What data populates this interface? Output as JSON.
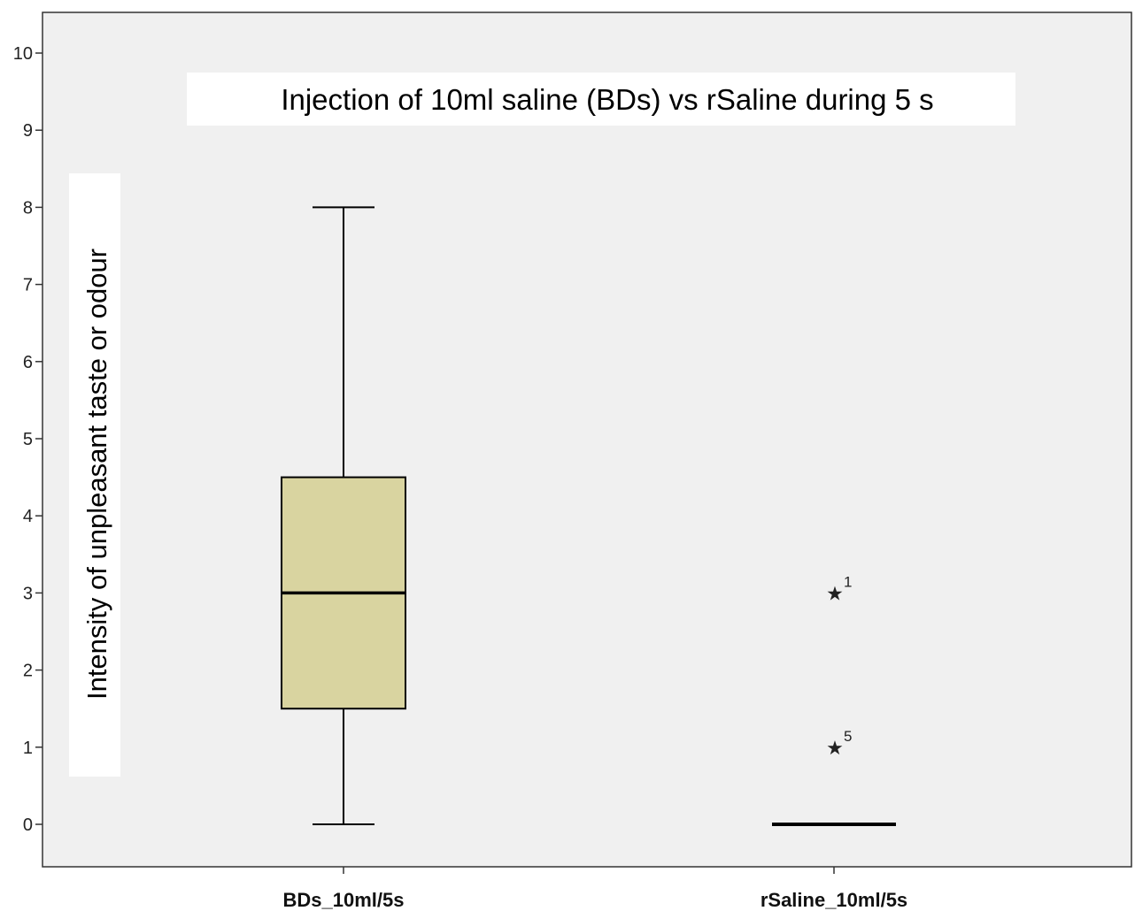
{
  "chart_data": {
    "type": "boxplot",
    "title": "Injection of 10ml saline (BDs) vs rSaline during 5 s",
    "xlabel": "",
    "ylabel": "Intensity of unpleasant taste or odour",
    "ylim": [
      -0.5,
      10.5
    ],
    "y_ticks": [
      0,
      1,
      2,
      3,
      4,
      5,
      6,
      7,
      8,
      9,
      10
    ],
    "categories": [
      "BDs_10ml/5s",
      "rSaline_10ml/5s"
    ],
    "grid": false,
    "series": [
      {
        "category": "BDs_10ml/5s",
        "min": 0,
        "q1": 1.5,
        "median": 3,
        "q3": 4.5,
        "max": 8,
        "outliers": []
      },
      {
        "category": "rSaline_10ml/5s",
        "min": 0,
        "q1": 0,
        "median": 0,
        "q3": 0,
        "max": 0,
        "outliers": [
          {
            "value": 3,
            "label": "1"
          },
          {
            "value": 1,
            "label": "5"
          }
        ]
      }
    ],
    "colors": {
      "plot_background": "#f0f0f0",
      "box_fill": "#d9d4a0",
      "line": "#000000"
    }
  }
}
